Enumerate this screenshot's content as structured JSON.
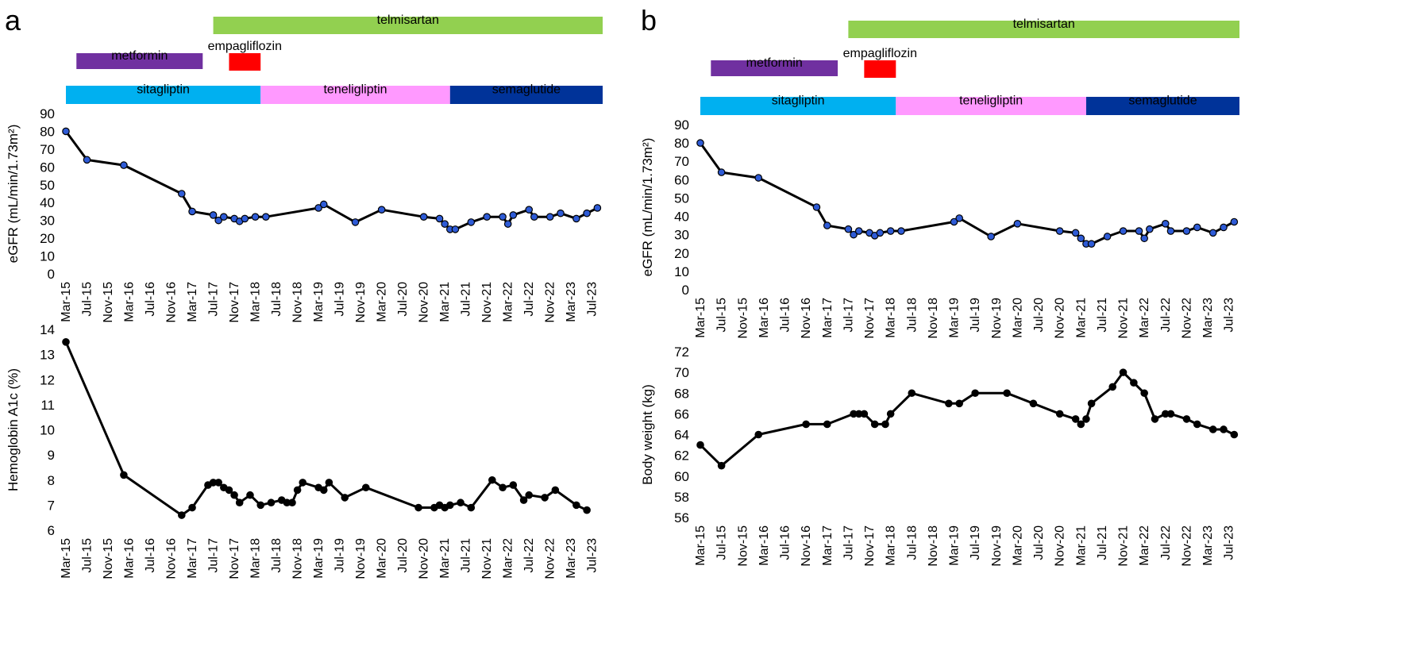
{
  "panels": [
    {
      "label": "a",
      "drugs": [
        {
          "name": "telmisartan",
          "color": "#92d050",
          "start": 28,
          "end": 102
        },
        {
          "name": "metformin",
          "color": "#7030a0",
          "start": 2,
          "end": 26
        },
        {
          "name": "empagliflozin",
          "color": "#ff0000",
          "start": 31,
          "end": 37
        },
        {
          "name": "sitagliptin",
          "color": "#00b0f0",
          "start": 0,
          "end": 37
        },
        {
          "name": "teneligliptin",
          "color": "#ff99ff",
          "start": 37,
          "end": 73
        },
        {
          "name": "semaglutide",
          "color": "#003399",
          "start": 73,
          "end": 102
        }
      ]
    },
    {
      "label": "b",
      "drugs": [
        {
          "name": "telmisartan",
          "color": "#92d050",
          "start": 28,
          "end": 102
        },
        {
          "name": "metformin",
          "color": "#7030a0",
          "start": 2,
          "end": 26
        },
        {
          "name": "empagliflozin",
          "color": "#ff0000",
          "start": 31,
          "end": 37
        },
        {
          "name": "sitagliptin",
          "color": "#00b0f0",
          "start": 0,
          "end": 37
        },
        {
          "name": "teneligliptin",
          "color": "#ff99ff",
          "start": 37,
          "end": 73
        },
        {
          "name": "semaglutide",
          "color": "#003399",
          "start": 73,
          "end": 102
        }
      ]
    }
  ],
  "chart_data": [
    {
      "panel": "a",
      "type": "line",
      "xlabel": "",
      "ylabel": "eGFR (mL/min/1.73m²)",
      "ylim": [
        0,
        90
      ],
      "yticks": [
        0,
        10,
        20,
        30,
        40,
        50,
        60,
        70,
        80,
        90
      ],
      "xlim": [
        0,
        102
      ],
      "xtick_labels": [
        "Mar-15",
        "Jul-15",
        "Nov-15",
        "Mar-16",
        "Jul-16",
        "Nov-16",
        "Mar-17",
        "Jul-17",
        "Nov-17",
        "Mar-18",
        "Jul-18",
        "Nov-18",
        "Mar-19",
        "Jul-19",
        "Nov-19",
        "Mar-20",
        "Jul-20",
        "Nov-20",
        "Mar-21",
        "Jul-21",
        "Nov-21",
        "Mar-22",
        "Jul-22",
        "Nov-22",
        "Mar-23",
        "Jul-23"
      ],
      "series_color": "#000000",
      "marker_color": "#2e5bd6",
      "x": [
        0,
        4,
        11,
        22,
        24,
        28,
        29,
        30,
        32,
        33,
        34,
        36,
        38,
        48,
        49,
        55,
        60,
        68,
        71,
        72,
        73,
        74,
        77,
        80,
        83,
        84,
        85,
        88,
        89,
        92,
        94,
        97,
        99,
        101
      ],
      "y": [
        80,
        64,
        61,
        45,
        35,
        33,
        30,
        32,
        31,
        29.5,
        31,
        32,
        32,
        37,
        39,
        29,
        36,
        32,
        31,
        28,
        25,
        25,
        29,
        32,
        32,
        28,
        33,
        36,
        32,
        32,
        34,
        31,
        34,
        37
      ]
    },
    {
      "panel": "a",
      "type": "line",
      "xlabel": "",
      "ylabel": "Hemoglobin A1c (%)",
      "ylim": [
        6,
        14
      ],
      "yticks": [
        6,
        7,
        8,
        9,
        10,
        11,
        12,
        13,
        14
      ],
      "xlim": [
        0,
        102
      ],
      "xtick_labels": [
        "Mar-15",
        "Jul-15",
        "Nov-15",
        "Mar-16",
        "Jul-16",
        "Nov-16",
        "Mar-17",
        "Jul-17",
        "Nov-17",
        "Mar-18",
        "Jul-18",
        "Nov-18",
        "Mar-19",
        "Jul-19",
        "Nov-19",
        "Mar-20",
        "Jul-20",
        "Nov-20",
        "Mar-21",
        "Jul-21",
        "Nov-21",
        "Mar-22",
        "Jul-22",
        "Nov-22",
        "Mar-23",
        "Jul-23"
      ],
      "series_color": "#000000",
      "marker_color": "#000000",
      "x": [
        0,
        11,
        22,
        24,
        27,
        28,
        29,
        30,
        31,
        32,
        33,
        35,
        37,
        39,
        41,
        42,
        43,
        44,
        45,
        48,
        49,
        50,
        53,
        57,
        67,
        70,
        71,
        72,
        73,
        75,
        77,
        81,
        83,
        85,
        87,
        88,
        91,
        93,
        97,
        99
      ],
      "y": [
        13.5,
        8.2,
        6.6,
        6.9,
        7.8,
        7.9,
        7.9,
        7.7,
        7.6,
        7.4,
        7.1,
        7.4,
        7.0,
        7.1,
        7.2,
        7.1,
        7.1,
        7.6,
        7.9,
        7.7,
        7.6,
        7.9,
        7.3,
        7.7,
        6.9,
        6.9,
        7.0,
        6.9,
        7.0,
        7.1,
        6.9,
        8.0,
        7.7,
        7.8,
        7.2,
        7.4,
        7.3,
        7.6,
        7.0,
        6.8
      ]
    },
    {
      "panel": "b",
      "type": "line",
      "xlabel": "",
      "ylabel": "eGFR (mL/min/1.73m²)",
      "ylim": [
        0,
        90
      ],
      "yticks": [
        0,
        10,
        20,
        30,
        40,
        50,
        60,
        70,
        80,
        90
      ],
      "xlim": [
        0,
        102
      ],
      "xtick_labels": [
        "Mar-15",
        "Jul-15",
        "Nov-15",
        "Mar-16",
        "Jul-16",
        "Nov-16",
        "Mar-17",
        "Jul-17",
        "Nov-17",
        "Mar-18",
        "Jul-18",
        "Nov-18",
        "Mar-19",
        "Jul-19",
        "Nov-19",
        "Mar-20",
        "Jul-20",
        "Nov-20",
        "Mar-21",
        "Jul-21",
        "Nov-21",
        "Mar-22",
        "Jul-22",
        "Nov-22",
        "Mar-23",
        "Jul-23"
      ],
      "series_color": "#000000",
      "marker_color": "#2e5bd6",
      "x": [
        0,
        4,
        11,
        22,
        24,
        28,
        29,
        30,
        32,
        33,
        34,
        36,
        38,
        48,
        49,
        55,
        60,
        68,
        71,
        72,
        73,
        74,
        77,
        80,
        83,
        84,
        85,
        88,
        89,
        92,
        94,
        97,
        99,
        101
      ],
      "y": [
        80,
        64,
        61,
        45,
        35,
        33,
        30,
        32,
        31,
        29.5,
        31,
        32,
        32,
        37,
        39,
        29,
        36,
        32,
        31,
        28,
        25,
        25,
        29,
        32,
        32,
        28,
        33,
        36,
        32,
        32,
        34,
        31,
        34,
        37
      ]
    },
    {
      "panel": "b",
      "type": "line",
      "xlabel": "",
      "ylabel": "Body weight (kg)",
      "ylim": [
        56,
        72
      ],
      "yticks": [
        56,
        58,
        60,
        62,
        64,
        66,
        68,
        70,
        72
      ],
      "xlim": [
        0,
        102
      ],
      "xtick_labels": [
        "Mar-15",
        "Jul-15",
        "Nov-15",
        "Mar-16",
        "Jul-16",
        "Nov-16",
        "Mar-17",
        "Jul-17",
        "Nov-17",
        "Mar-18",
        "Jul-18",
        "Nov-18",
        "Mar-19",
        "Jul-19",
        "Nov-19",
        "Mar-20",
        "Jul-20",
        "Nov-20",
        "Mar-21",
        "Jul-21",
        "Nov-21",
        "Mar-22",
        "Jul-22",
        "Nov-22",
        "Mar-23",
        "Jul-23"
      ],
      "series_color": "#000000",
      "marker_color": "#000000",
      "x": [
        0,
        4,
        11,
        20,
        24,
        29,
        30,
        31,
        33,
        35,
        36,
        40,
        47,
        49,
        52,
        58,
        63,
        68,
        71,
        72,
        73,
        74,
        78,
        80,
        82,
        84,
        86,
        88,
        89,
        92,
        94,
        97,
        99,
        101
      ],
      "y": [
        63,
        61,
        64,
        65,
        65,
        66,
        66,
        66,
        65,
        65,
        66,
        68,
        67,
        67,
        68,
        68,
        67,
        66,
        65.5,
        65,
        65.5,
        67,
        68.6,
        70,
        69,
        68,
        65.5,
        66,
        66,
        65.5,
        65,
        64.5,
        64.5,
        64
      ]
    }
  ]
}
